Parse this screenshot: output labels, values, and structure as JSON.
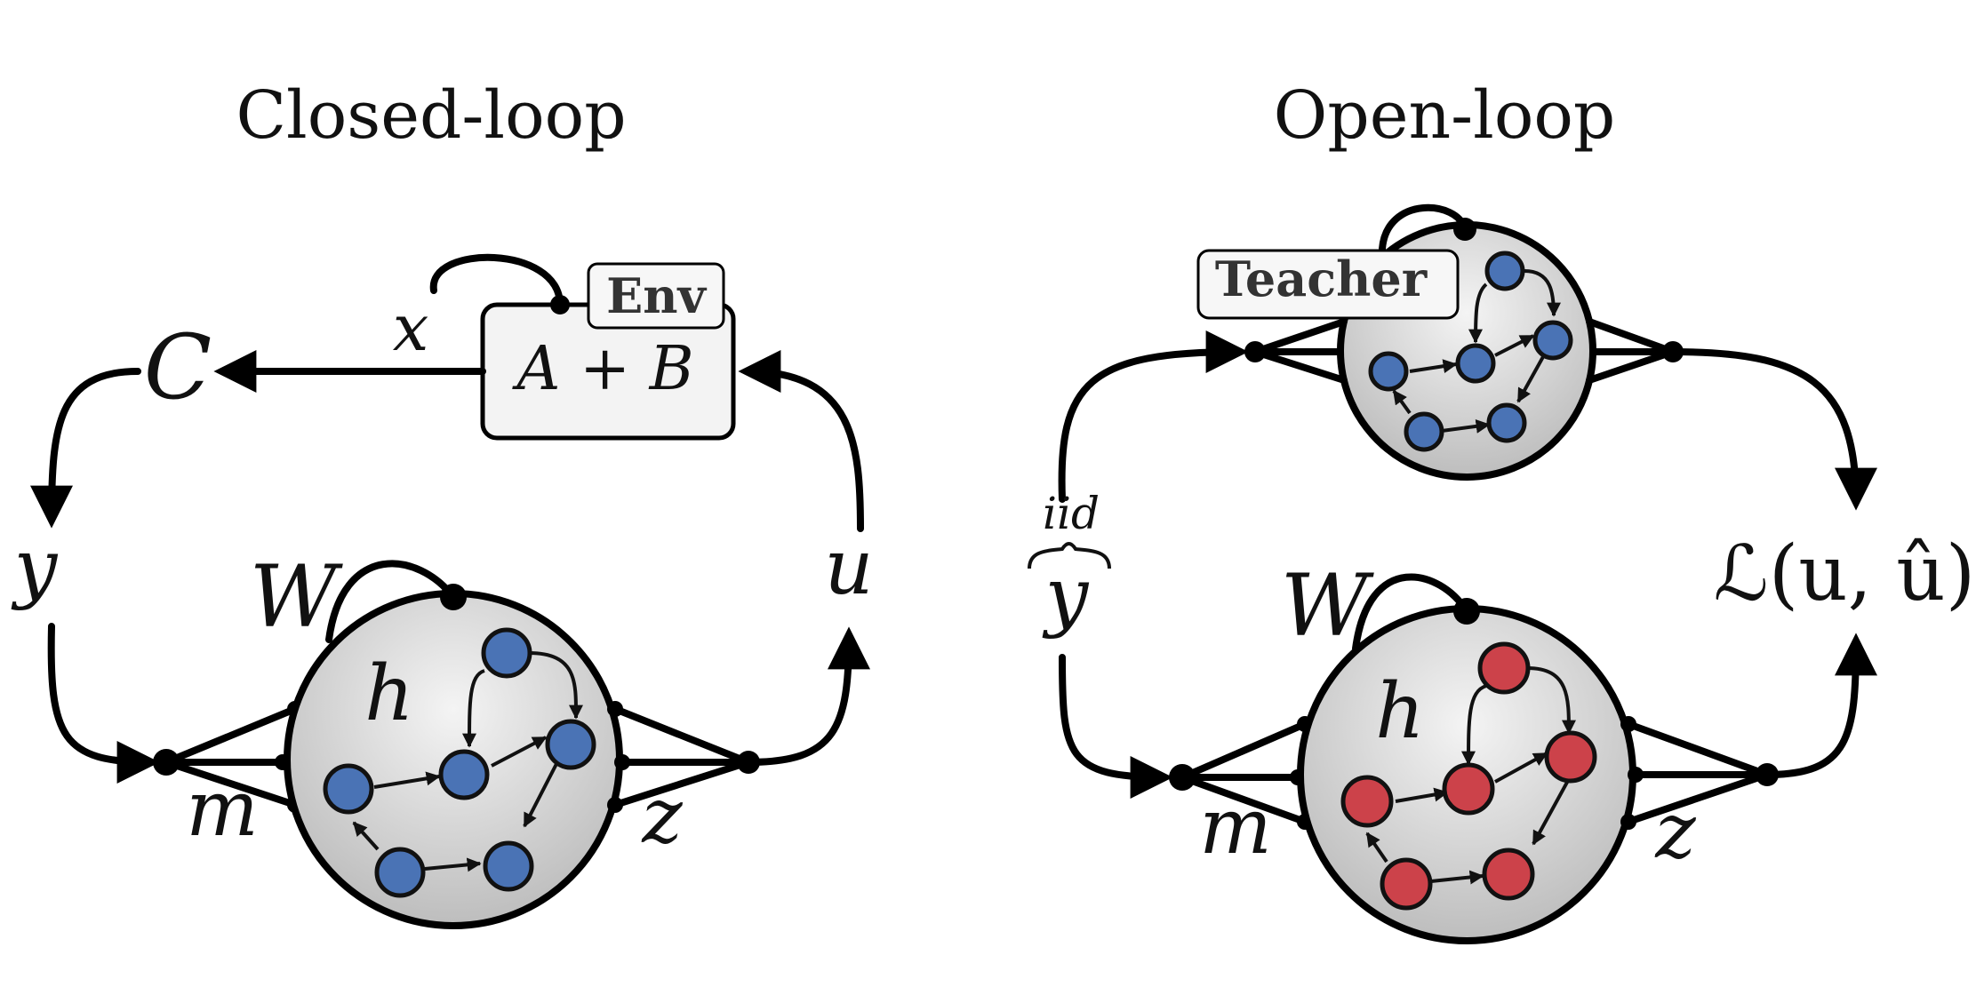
{
  "closed_loop": {
    "title": "Closed-loop",
    "env_label": "Env",
    "env_equation": "A + B",
    "state_label": "x",
    "output_label": "C",
    "observation_label": "y",
    "action_label": "u",
    "weights_label": "W",
    "hidden_label": "h",
    "input_label": "m",
    "readout_label": "z",
    "node_color": "#4a73b5"
  },
  "open_loop": {
    "title": "Open-loop",
    "teacher_label": "Teacher",
    "observation_label": "y",
    "sampling_label": "iid",
    "loss_label": "ℒ(u, û)",
    "weights_label": "W",
    "hidden_label": "h",
    "input_label": "m",
    "readout_label": "z",
    "node_color_teacher": "#4a73b5",
    "node_color_student": "#cc424a"
  }
}
